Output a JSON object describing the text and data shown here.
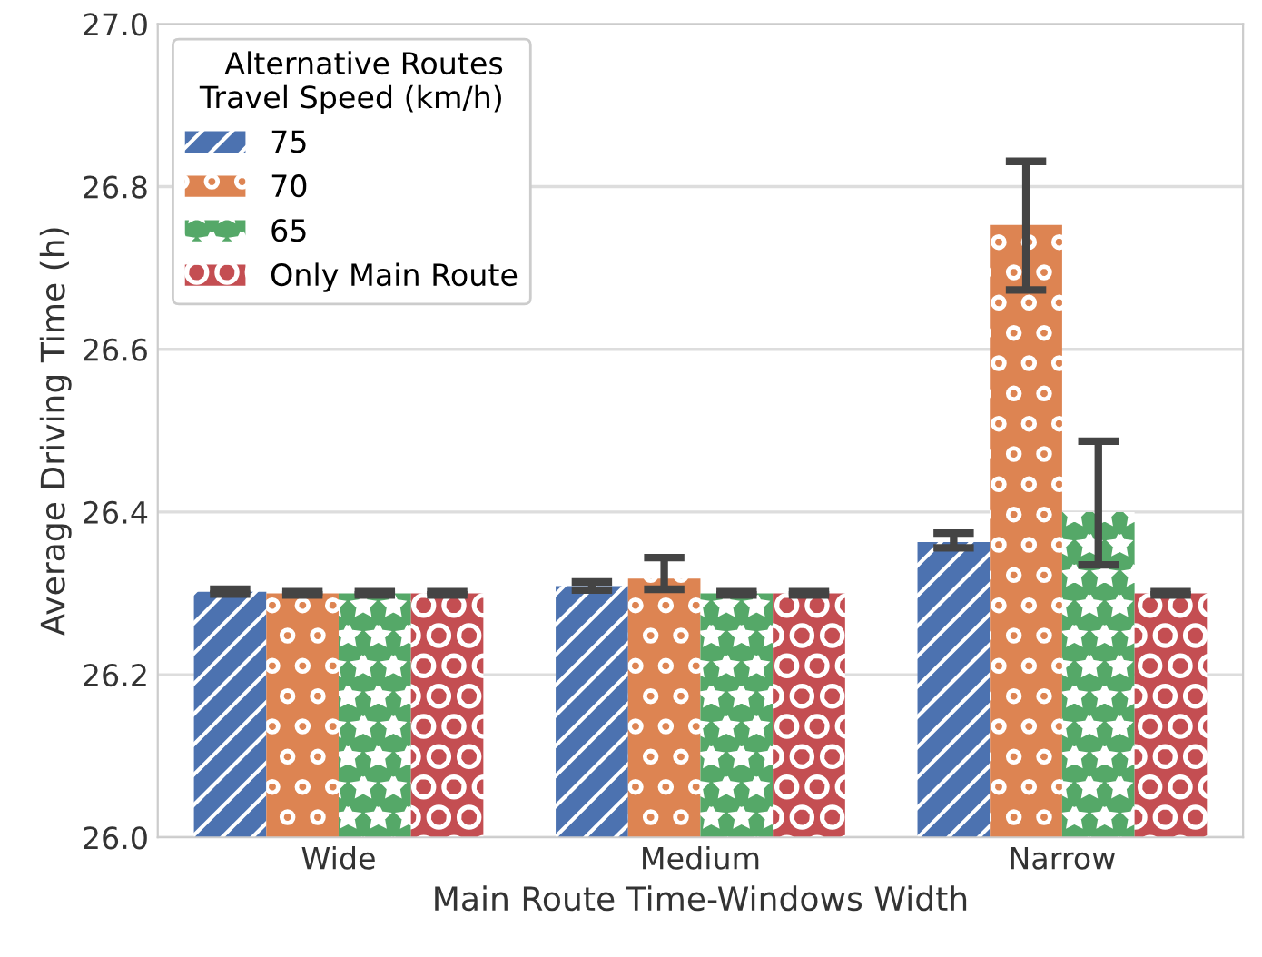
{
  "chart_data": {
    "type": "bar",
    "xlabel": "Main Route Time-Windows Width",
    "ylabel": "Average Driving Time (h)",
    "legend_title": "Alternative Routes\nTravel Speed (km/h)",
    "categories": [
      "Wide",
      "Medium",
      "Narrow"
    ],
    "series": [
      {
        "name": "75",
        "color": "#4c72b0",
        "values": [
          26.302,
          26.309,
          26.363
        ],
        "errors": [
          [
            26.299,
            26.305
          ],
          [
            26.304,
            26.314
          ],
          [
            26.356,
            26.374
          ]
        ]
      },
      {
        "name": "70",
        "color": "#dd8452",
        "values": [
          26.3,
          26.318,
          26.753
        ],
        "errors": [
          [
            26.298,
            26.302
          ],
          [
            26.305,
            26.344
          ],
          [
            26.673,
            26.831
          ]
        ]
      },
      {
        "name": "65",
        "color": "#55a868",
        "values": [
          26.3,
          26.3,
          26.4
        ],
        "errors": [
          [
            26.298,
            26.302
          ],
          [
            26.298,
            26.302
          ],
          [
            26.335,
            26.487
          ]
        ]
      },
      {
        "name": "Only Main Route",
        "color": "#c44e52",
        "values": [
          26.3,
          26.3,
          26.3
        ],
        "errors": [
          [
            26.298,
            26.302
          ],
          [
            26.298,
            26.302
          ],
          [
            26.298,
            26.302
          ]
        ]
      }
    ],
    "ylim": [
      26.0,
      27.0
    ],
    "yticks": [
      {
        "value": 26.0,
        "label": "26.0"
      },
      {
        "value": 26.2,
        "label": "26.2"
      },
      {
        "value": 26.4,
        "label": "26.4"
      },
      {
        "value": 26.6,
        "label": "26.6"
      },
      {
        "value": 26.8,
        "label": "26.8"
      },
      {
        "value": 27.0,
        "label": "27.0"
      }
    ],
    "grid": "y",
    "legend": "top left"
  }
}
